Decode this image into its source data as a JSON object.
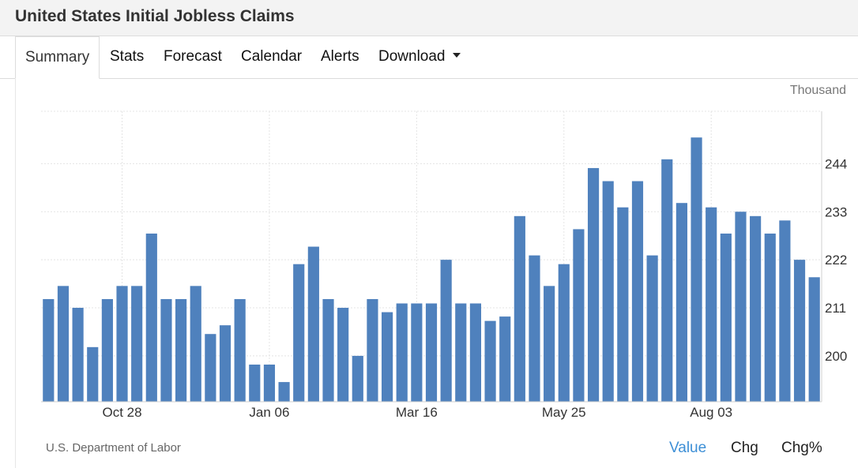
{
  "header": {
    "title": "United States Initial Jobless Claims"
  },
  "tabs": [
    {
      "label": "Summary"
    },
    {
      "label": "Stats"
    },
    {
      "label": "Forecast"
    },
    {
      "label": "Calendar"
    },
    {
      "label": "Alerts"
    },
    {
      "label": "Download"
    }
  ],
  "unit_label": "Thousand",
  "source": "U.S. Department of Labor",
  "view_toggles": [
    {
      "label": "Value",
      "active": true
    },
    {
      "label": "Chg",
      "active": false
    },
    {
      "label": "Chg%",
      "active": false
    }
  ],
  "colors": {
    "bar": "#4f81bd",
    "active_toggle": "#3d8fd6"
  },
  "chart_data": {
    "type": "bar",
    "values": [
      213,
      216,
      211,
      202,
      213,
      216,
      216,
      228,
      213,
      213,
      216,
      205,
      207,
      213,
      198,
      198,
      194,
      221,
      225,
      213,
      211,
      200,
      213,
      210,
      212,
      212,
      212,
      222,
      212,
      212,
      208,
      209,
      232,
      223,
      216,
      221,
      229,
      243,
      240,
      234,
      240,
      223,
      245,
      235,
      250,
      234,
      228,
      233,
      232,
      228,
      231,
      222,
      218
    ],
    "x_tick_labels": [
      {
        "label": "Oct 28",
        "index": 5.5
      },
      {
        "label": "Jan 06",
        "index": 15.5
      },
      {
        "label": "Mar 16",
        "index": 25.5
      },
      {
        "label": "May 25",
        "index": 35.5
      },
      {
        "label": "Aug 03",
        "index": 45.5
      }
    ],
    "y_ticks": [
      200,
      211,
      222,
      233,
      244
    ],
    "ylim": [
      189.5,
      256
    ],
    "grid": true,
    "y_axis_side": "right"
  }
}
